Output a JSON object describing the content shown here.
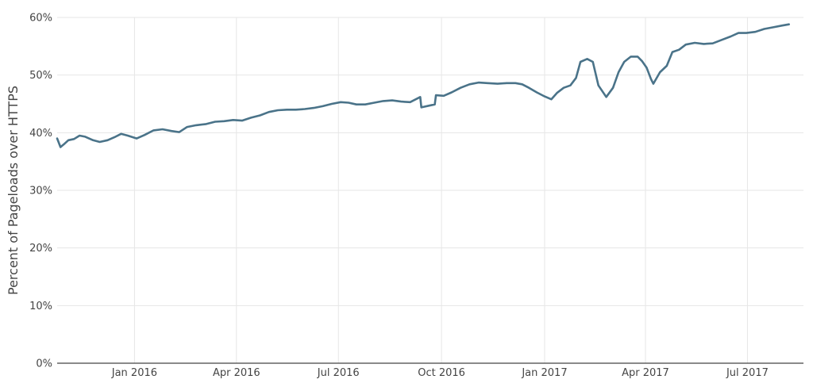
{
  "chart_data": {
    "type": "line",
    "title": "",
    "xlabel": "",
    "ylabel": "Percent of Pageloads over HTTPS",
    "x_range": [
      "2015-10-24",
      "2017-08-20"
    ],
    "ylim": [
      0,
      60
    ],
    "y_ticks": [
      0,
      10,
      20,
      30,
      40,
      50,
      60
    ],
    "y_tick_labels": [
      "0%",
      "10%",
      "20%",
      "30%",
      "40%",
      "50%",
      "60%"
    ],
    "x_ticks": [
      {
        "date": "2016-01-01",
        "label": "Jan 2016"
      },
      {
        "date": "2016-04-01",
        "label": "Apr 2016"
      },
      {
        "date": "2016-07-01",
        "label": "Jul 2016"
      },
      {
        "date": "2016-10-01",
        "label": "Oct 2016"
      },
      {
        "date": "2017-01-01",
        "label": "Jan 2017"
      },
      {
        "date": "2017-04-01",
        "label": "Apr 2017"
      },
      {
        "date": "2017-07-01",
        "label": "Jul 2017"
      }
    ],
    "grid": true,
    "legend": "none",
    "color": "#4a7389",
    "series": [
      {
        "points": [
          [
            "2015-10-24",
            39.0
          ],
          [
            "2015-10-27",
            37.5
          ],
          [
            "2015-10-30",
            38.0
          ],
          [
            "2015-11-03",
            38.7
          ],
          [
            "2015-11-08",
            38.9
          ],
          [
            "2015-11-13",
            39.5
          ],
          [
            "2015-11-18",
            39.3
          ],
          [
            "2015-11-25",
            38.7
          ],
          [
            "2015-12-01",
            38.4
          ],
          [
            "2015-12-08",
            38.7
          ],
          [
            "2015-12-14",
            39.2
          ],
          [
            "2015-12-20",
            39.8
          ],
          [
            "2015-12-26",
            39.5
          ],
          [
            "2016-01-03",
            39.0
          ],
          [
            "2016-01-10",
            39.6
          ],
          [
            "2016-01-18",
            40.4
          ],
          [
            "2016-01-26",
            40.6
          ],
          [
            "2016-02-03",
            40.3
          ],
          [
            "2016-02-10",
            40.1
          ],
          [
            "2016-02-17",
            41.0
          ],
          [
            "2016-02-25",
            41.3
          ],
          [
            "2016-03-05",
            41.5
          ],
          [
            "2016-03-13",
            41.9
          ],
          [
            "2016-03-21",
            42.0
          ],
          [
            "2016-03-29",
            42.2
          ],
          [
            "2016-04-06",
            42.1
          ],
          [
            "2016-04-14",
            42.6
          ],
          [
            "2016-04-22",
            43.0
          ],
          [
            "2016-04-30",
            43.6
          ],
          [
            "2016-05-08",
            43.9
          ],
          [
            "2016-05-16",
            44.0
          ],
          [
            "2016-05-24",
            44.0
          ],
          [
            "2016-06-01",
            44.1
          ],
          [
            "2016-06-09",
            44.3
          ],
          [
            "2016-06-17",
            44.6
          ],
          [
            "2016-06-25",
            45.0
          ],
          [
            "2016-07-03",
            45.3
          ],
          [
            "2016-07-10",
            45.2
          ],
          [
            "2016-07-17",
            44.9
          ],
          [
            "2016-07-25",
            44.9
          ],
          [
            "2016-08-02",
            45.2
          ],
          [
            "2016-08-10",
            45.5
          ],
          [
            "2016-08-18",
            45.6
          ],
          [
            "2016-08-26",
            45.4
          ],
          [
            "2016-09-03",
            45.3
          ],
          [
            "2016-09-08",
            45.8
          ],
          [
            "2016-09-12",
            46.2
          ],
          [
            "2016-09-13",
            44.4
          ],
          [
            "2016-09-20",
            44.7
          ],
          [
            "2016-09-25",
            44.9
          ],
          [
            "2016-09-26",
            46.5
          ],
          [
            "2016-10-03",
            46.4
          ],
          [
            "2016-10-10",
            47.0
          ],
          [
            "2016-10-18",
            47.8
          ],
          [
            "2016-10-26",
            48.4
          ],
          [
            "2016-11-03",
            48.7
          ],
          [
            "2016-11-11",
            48.6
          ],
          [
            "2016-11-20",
            48.5
          ],
          [
            "2016-11-28",
            48.6
          ],
          [
            "2016-12-06",
            48.6
          ],
          [
            "2016-12-12",
            48.4
          ],
          [
            "2016-12-18",
            47.8
          ],
          [
            "2016-12-25",
            47.0
          ],
          [
            "2017-01-01",
            46.3
          ],
          [
            "2017-01-07",
            45.8
          ],
          [
            "2017-01-12",
            46.9
          ],
          [
            "2017-01-18",
            47.8
          ],
          [
            "2017-01-24",
            48.2
          ],
          [
            "2017-01-29",
            49.5
          ],
          [
            "2017-02-02",
            52.3
          ],
          [
            "2017-02-08",
            52.8
          ],
          [
            "2017-02-13",
            52.3
          ],
          [
            "2017-02-18",
            48.2
          ],
          [
            "2017-02-25",
            46.2
          ],
          [
            "2017-03-03",
            47.8
          ],
          [
            "2017-03-08",
            50.5
          ],
          [
            "2017-03-13",
            52.3
          ],
          [
            "2017-03-19",
            53.2
          ],
          [
            "2017-03-25",
            53.2
          ],
          [
            "2017-03-29",
            52.4
          ],
          [
            "2017-04-02",
            51.3
          ],
          [
            "2017-04-06",
            49.3
          ],
          [
            "2017-04-08",
            48.5
          ],
          [
            "2017-04-14",
            50.5
          ],
          [
            "2017-04-20",
            51.6
          ],
          [
            "2017-04-25",
            54.0
          ],
          [
            "2017-05-01",
            54.4
          ],
          [
            "2017-05-07",
            55.3
          ],
          [
            "2017-05-15",
            55.6
          ],
          [
            "2017-05-23",
            55.4
          ],
          [
            "2017-05-31",
            55.5
          ],
          [
            "2017-06-08",
            56.1
          ],
          [
            "2017-06-16",
            56.7
          ],
          [
            "2017-06-23",
            57.3
          ],
          [
            "2017-06-30",
            57.3
          ],
          [
            "2017-07-08",
            57.5
          ],
          [
            "2017-07-16",
            58.0
          ],
          [
            "2017-07-24",
            58.3
          ],
          [
            "2017-08-01",
            58.6
          ],
          [
            "2017-08-07",
            58.8
          ]
        ]
      }
    ]
  }
}
